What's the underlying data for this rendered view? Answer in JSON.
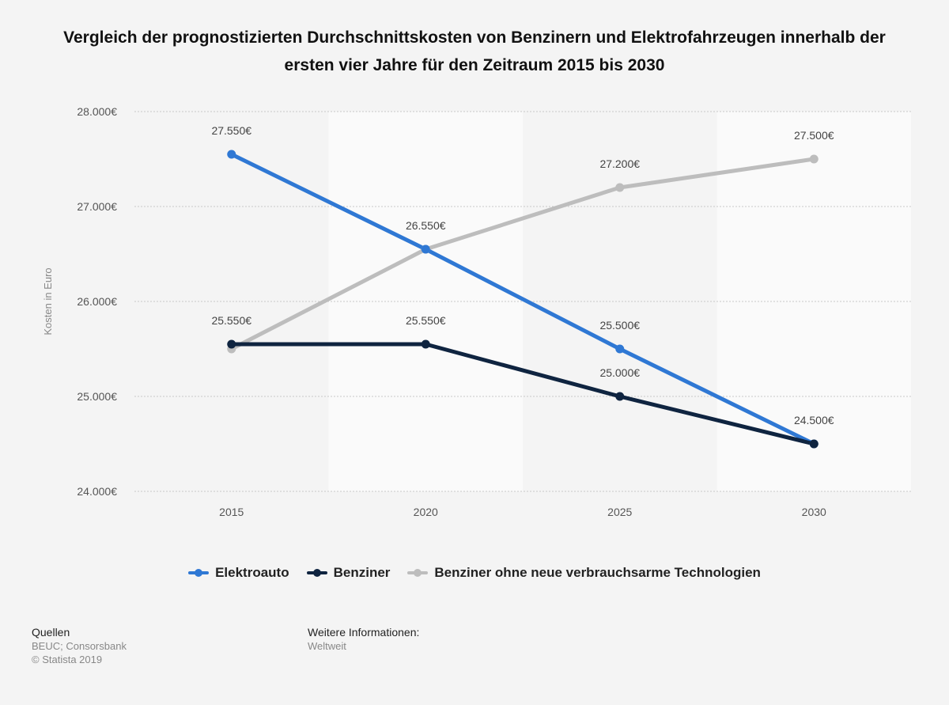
{
  "chart_data": {
    "type": "line",
    "title": "Vergleich der prognostizierten Durchschnittskosten von Benzinern und Elektrofahrzeugen innerhalb der ersten vier Jahre für den Zeitraum 2015 bis 2030",
    "xlabel": "",
    "ylabel": "Kosten in Euro",
    "categories": [
      "2015",
      "2020",
      "2025",
      "2030"
    ],
    "ylim": [
      24000,
      28000
    ],
    "yticks": [
      {
        "value": 24000,
        "label": "24.000€"
      },
      {
        "value": 25000,
        "label": "25.000€"
      },
      {
        "value": 26000,
        "label": "26.000€"
      },
      {
        "value": 27000,
        "label": "27.000€"
      },
      {
        "value": 28000,
        "label": "28.000€"
      }
    ],
    "grid": true,
    "legend_position": "bottom",
    "series": [
      {
        "name": "Elektroauto",
        "color": "#2f78d4",
        "values": [
          27550,
          26550,
          25500,
          24500
        ],
        "labels": [
          "27.550€",
          "26.550€",
          "25.500€",
          "24.500€"
        ]
      },
      {
        "name": "Benziner",
        "color": "#0f2440",
        "values": [
          25550,
          25550,
          25000,
          24500
        ],
        "labels": [
          "25.550€",
          "25.550€",
          "25.000€",
          ""
        ]
      },
      {
        "name": "Benziner ohne neue verbrauchsarme Technologien",
        "color": "#bdbdbd",
        "values": [
          25500,
          26550,
          27200,
          27500
        ],
        "labels": [
          "",
          "",
          "27.200€",
          "27.500€"
        ]
      }
    ]
  },
  "footer": {
    "sources_heading": "Quellen",
    "sources": "BEUC; Consorsbank",
    "copyright": "© Statista 2019",
    "info_heading": "Weitere Informationen:",
    "info": "Weltweit"
  }
}
